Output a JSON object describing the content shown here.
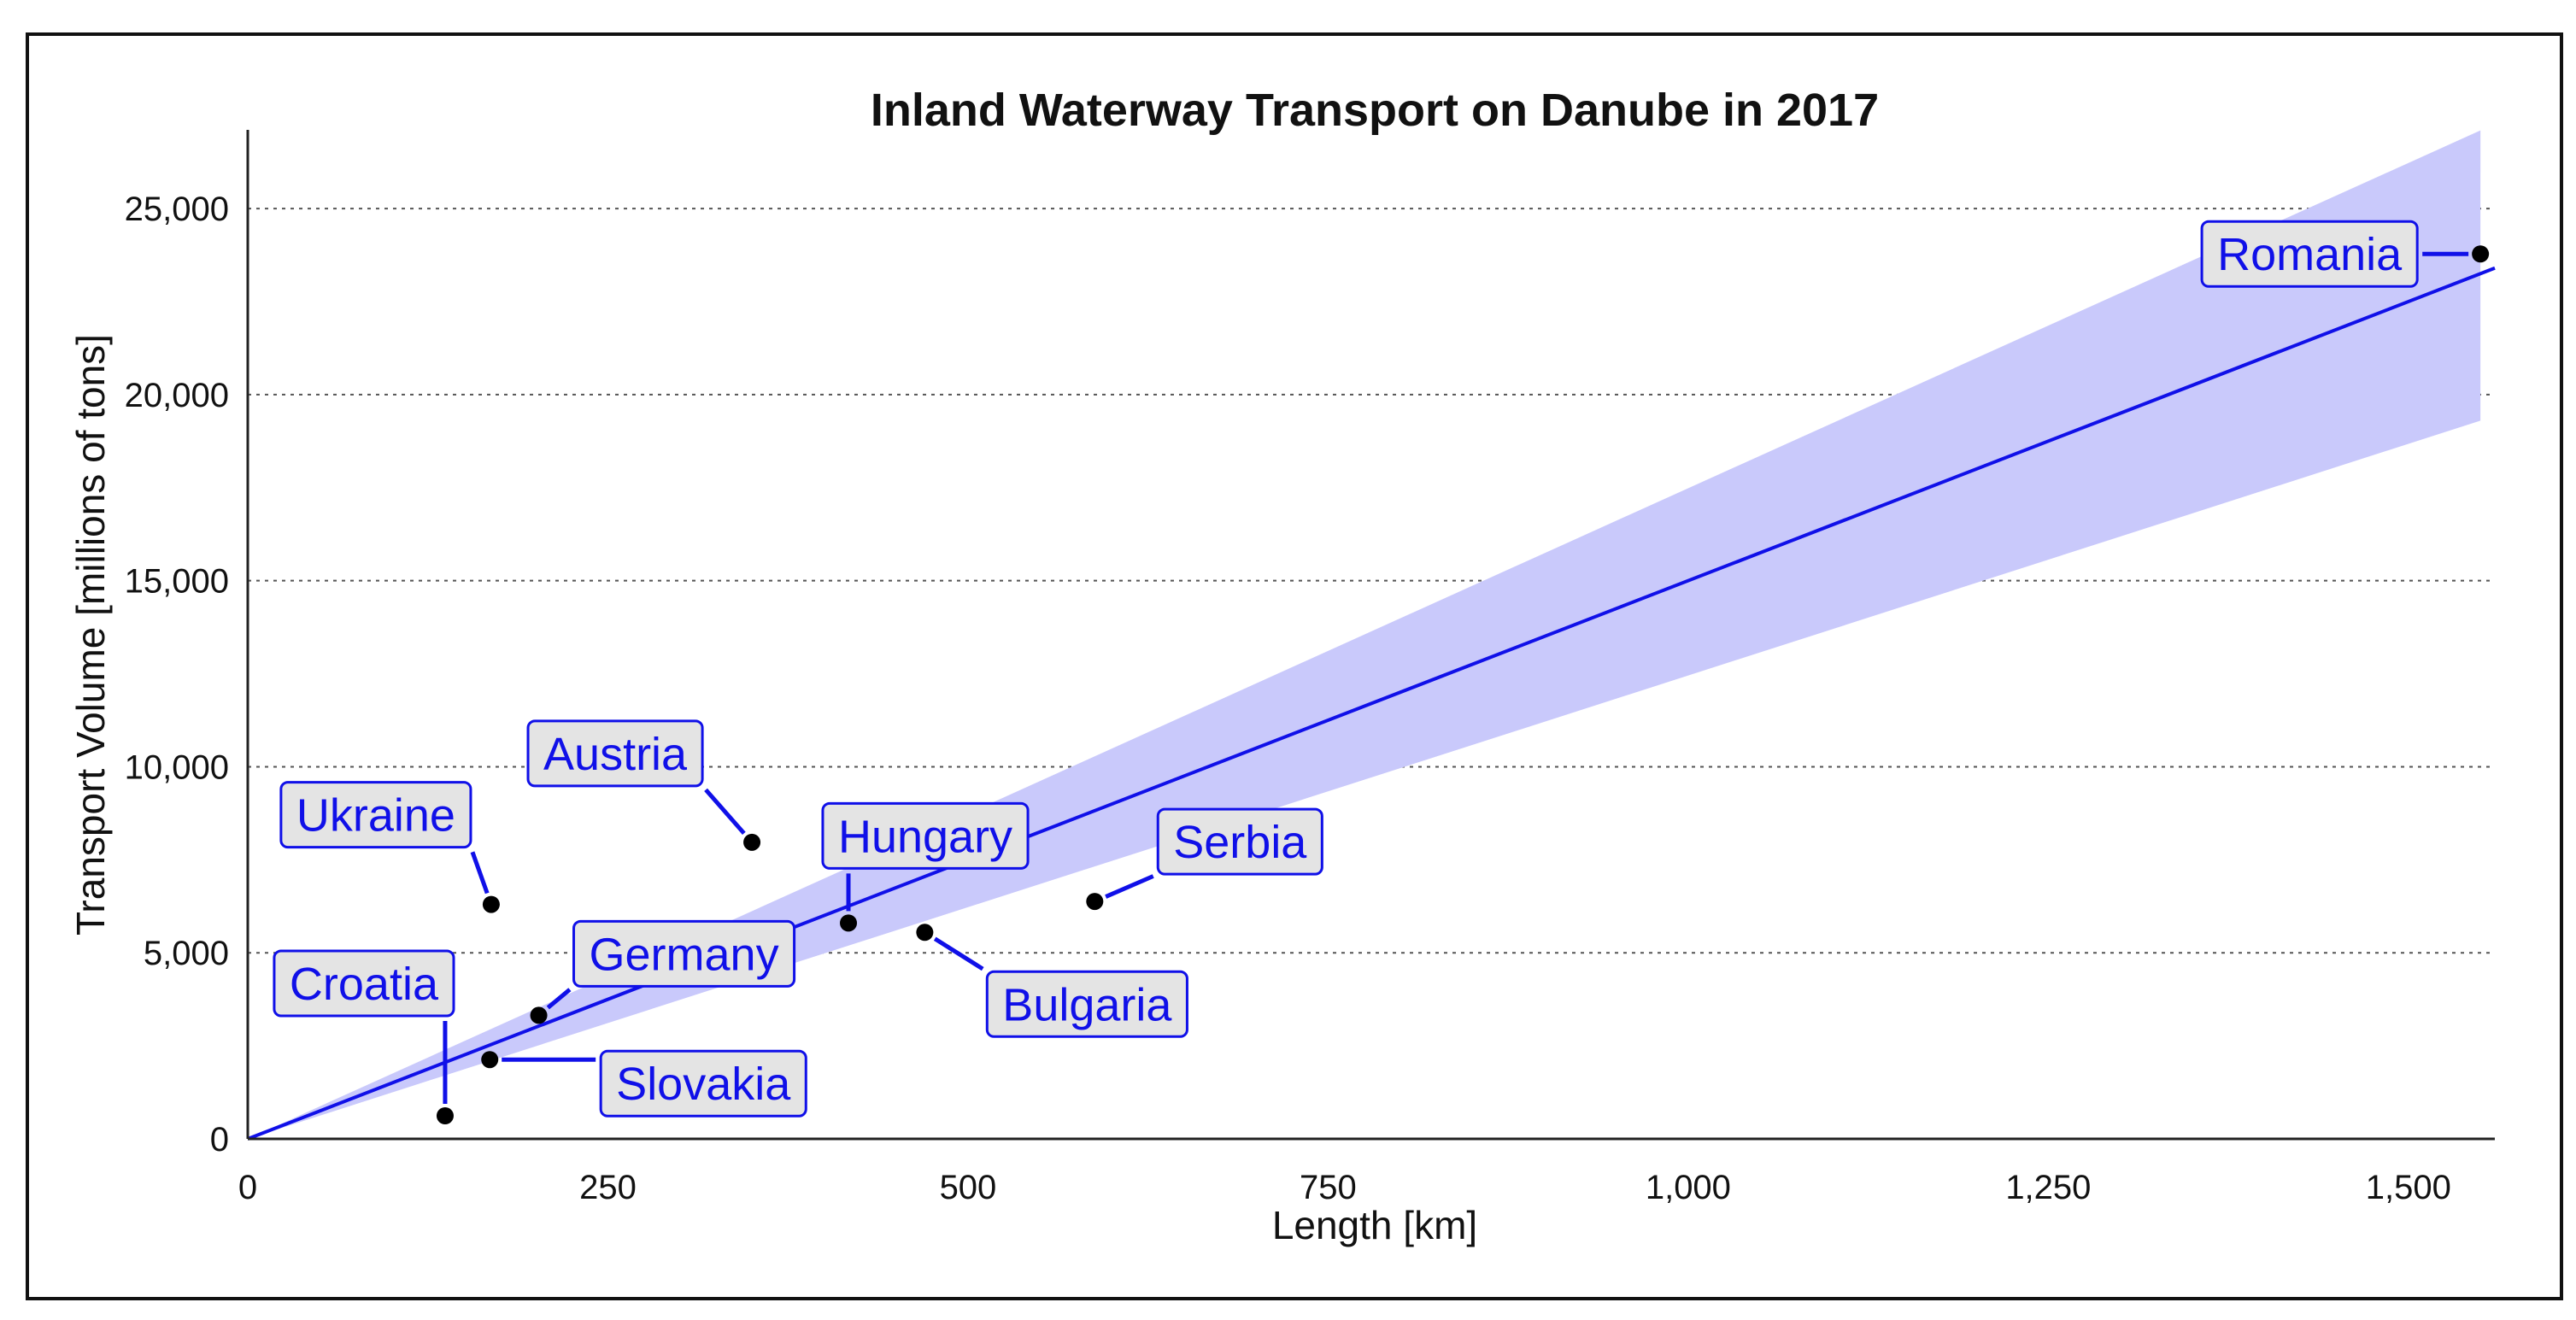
{
  "chart_data": {
    "type": "scatter",
    "title": "Inland Waterway Transport on Danube in 2017",
    "xlabel": "Length [km]",
    "ylabel": "Transport Volume [millions of tons]",
    "xlim": [
      0,
      1560
    ],
    "ylim": [
      0,
      27000
    ],
    "xticks": [
      {
        "value": 0,
        "label": "0"
      },
      {
        "value": 250,
        "label": "250"
      },
      {
        "value": 500,
        "label": "500"
      },
      {
        "value": 750,
        "label": "750"
      },
      {
        "value": 1000,
        "label": "1,000"
      },
      {
        "value": 1250,
        "label": "1,250"
      },
      {
        "value": 1500,
        "label": "1,500"
      }
    ],
    "yticks": [
      {
        "value": 0,
        "label": "0"
      },
      {
        "value": 5000,
        "label": "5,000"
      },
      {
        "value": 10000,
        "label": "10,000"
      },
      {
        "value": 15000,
        "label": "15,000"
      },
      {
        "value": 20000,
        "label": "20,000"
      },
      {
        "value": 25000,
        "label": "25,000"
      }
    ],
    "grid": "horizontal dotted",
    "points": [
      {
        "label": "Croatia",
        "x": 137,
        "y": 620
      },
      {
        "label": "Slovakia",
        "x": 168,
        "y": 2130
      },
      {
        "label": "Ukraine",
        "x": 169,
        "y": 6300
      },
      {
        "label": "Germany",
        "x": 202,
        "y": 3320
      },
      {
        "label": "Austria",
        "x": 350,
        "y": 7970
      },
      {
        "label": "Hungary",
        "x": 417,
        "y": 5800
      },
      {
        "label": "Bulgaria",
        "x": 470,
        "y": 5550
      },
      {
        "label": "Serbia",
        "x": 588,
        "y": 6380
      },
      {
        "label": "Romania",
        "x": 1550,
        "y": 23780
      }
    ],
    "fit_line": {
      "x": [
        0,
        1560
      ],
      "y": [
        0,
        23400
      ]
    },
    "confidence_band": {
      "x": [
        0,
        1550
      ],
      "upper": [
        0,
        27100
      ],
      "lower": [
        0,
        19300
      ]
    },
    "colors": {
      "accent": "#1010e8",
      "band": "#c9c9fb",
      "point": "#000000",
      "label_fill": "#e4e4e4"
    }
  }
}
